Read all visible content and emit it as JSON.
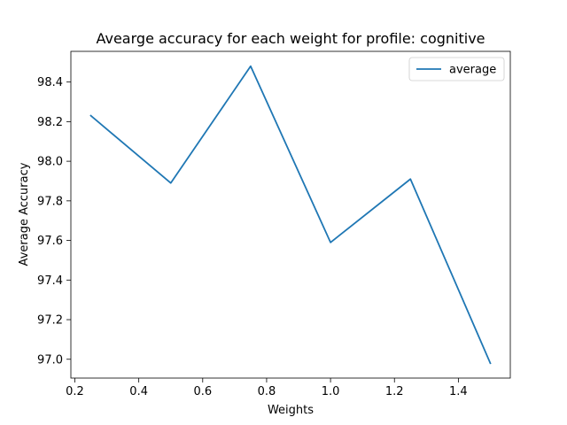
{
  "chart_data": {
    "type": "line",
    "title": "Avearge accuracy for each weight for profile: cognitive",
    "xlabel": "Weights",
    "ylabel": "Average Accuracy",
    "xlim": [
      0.1875,
      1.5625
    ],
    "ylim": [
      96.905,
      98.555
    ],
    "xticks": [
      0.2,
      0.4,
      0.6,
      0.8,
      1.0,
      1.2,
      1.4
    ],
    "xtick_labels": [
      "0.2",
      "0.4",
      "0.6",
      "0.8",
      "1.0",
      "1.2",
      "1.4"
    ],
    "yticks": [
      97.0,
      97.2,
      97.4,
      97.6,
      97.8,
      98.0,
      98.2,
      98.4
    ],
    "ytick_labels": [
      "97.0",
      "97.2",
      "97.4",
      "97.6",
      "97.8",
      "98.0",
      "98.2",
      "98.4"
    ],
    "grid": false,
    "legend_position": "top-right",
    "series": [
      {
        "name": "average",
        "color": "#1f77b4",
        "x": [
          0.25,
          0.5,
          0.75,
          1.0,
          1.25,
          1.5
        ],
        "y": [
          98.23,
          97.89,
          98.48,
          97.59,
          97.91,
          96.98
        ]
      }
    ]
  }
}
